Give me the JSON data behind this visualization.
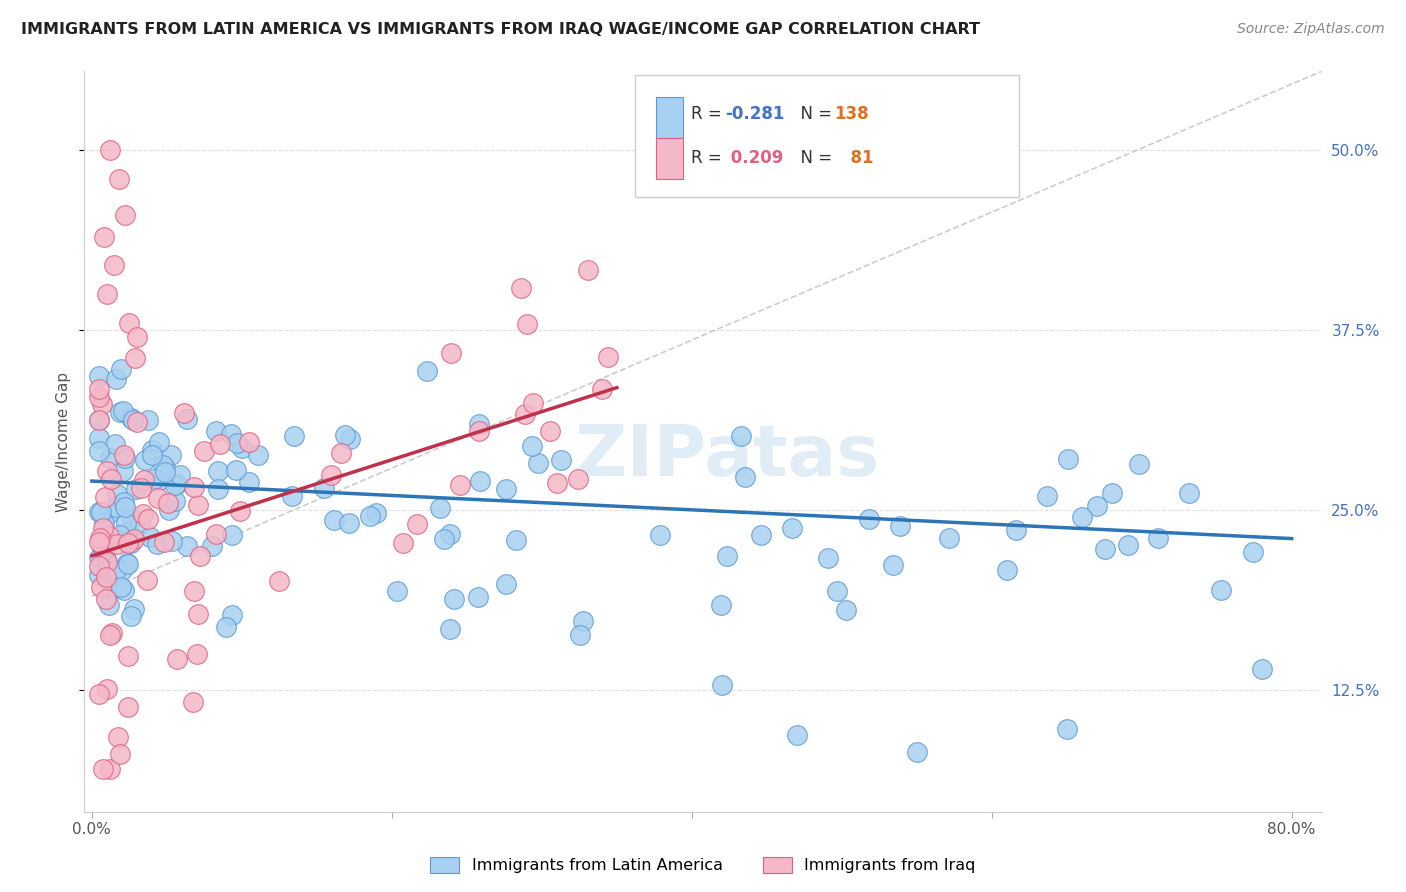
{
  "title": "IMMIGRANTS FROM LATIN AMERICA VS IMMIGRANTS FROM IRAQ WAGE/INCOME GAP CORRELATION CHART",
  "source": "Source: ZipAtlas.com",
  "ylabel": "Wage/Income Gap",
  "ytick_values": [
    0.125,
    0.25,
    0.375,
    0.5
  ],
  "ytick_labels": [
    "12.5%",
    "25.0%",
    "37.5%",
    "50.0%"
  ],
  "xlim": [
    -0.005,
    0.82
  ],
  "ylim": [
    0.04,
    0.555
  ],
  "legend_entry1": "Immigrants from Latin America",
  "legend_entry2": "Immigrants from Iraq",
  "R1": "-0.281",
  "N1": "138",
  "R2": "0.209",
  "N2": "81",
  "color_blue_fill": "#a8d0f0",
  "color_blue_edge": "#5b9bd5",
  "color_pink_fill": "#f4b8c8",
  "color_pink_edge": "#e06080",
  "color_trend_blue": "#2e75b6",
  "color_trend_pink": "#c0304a",
  "color_dashed": "#c0c0c0",
  "color_grid": "#e0e0e0",
  "color_ytick": "#4472c4",
  "watermark_color": "#d8e8f0",
  "watermark_text": "ZIPatas"
}
